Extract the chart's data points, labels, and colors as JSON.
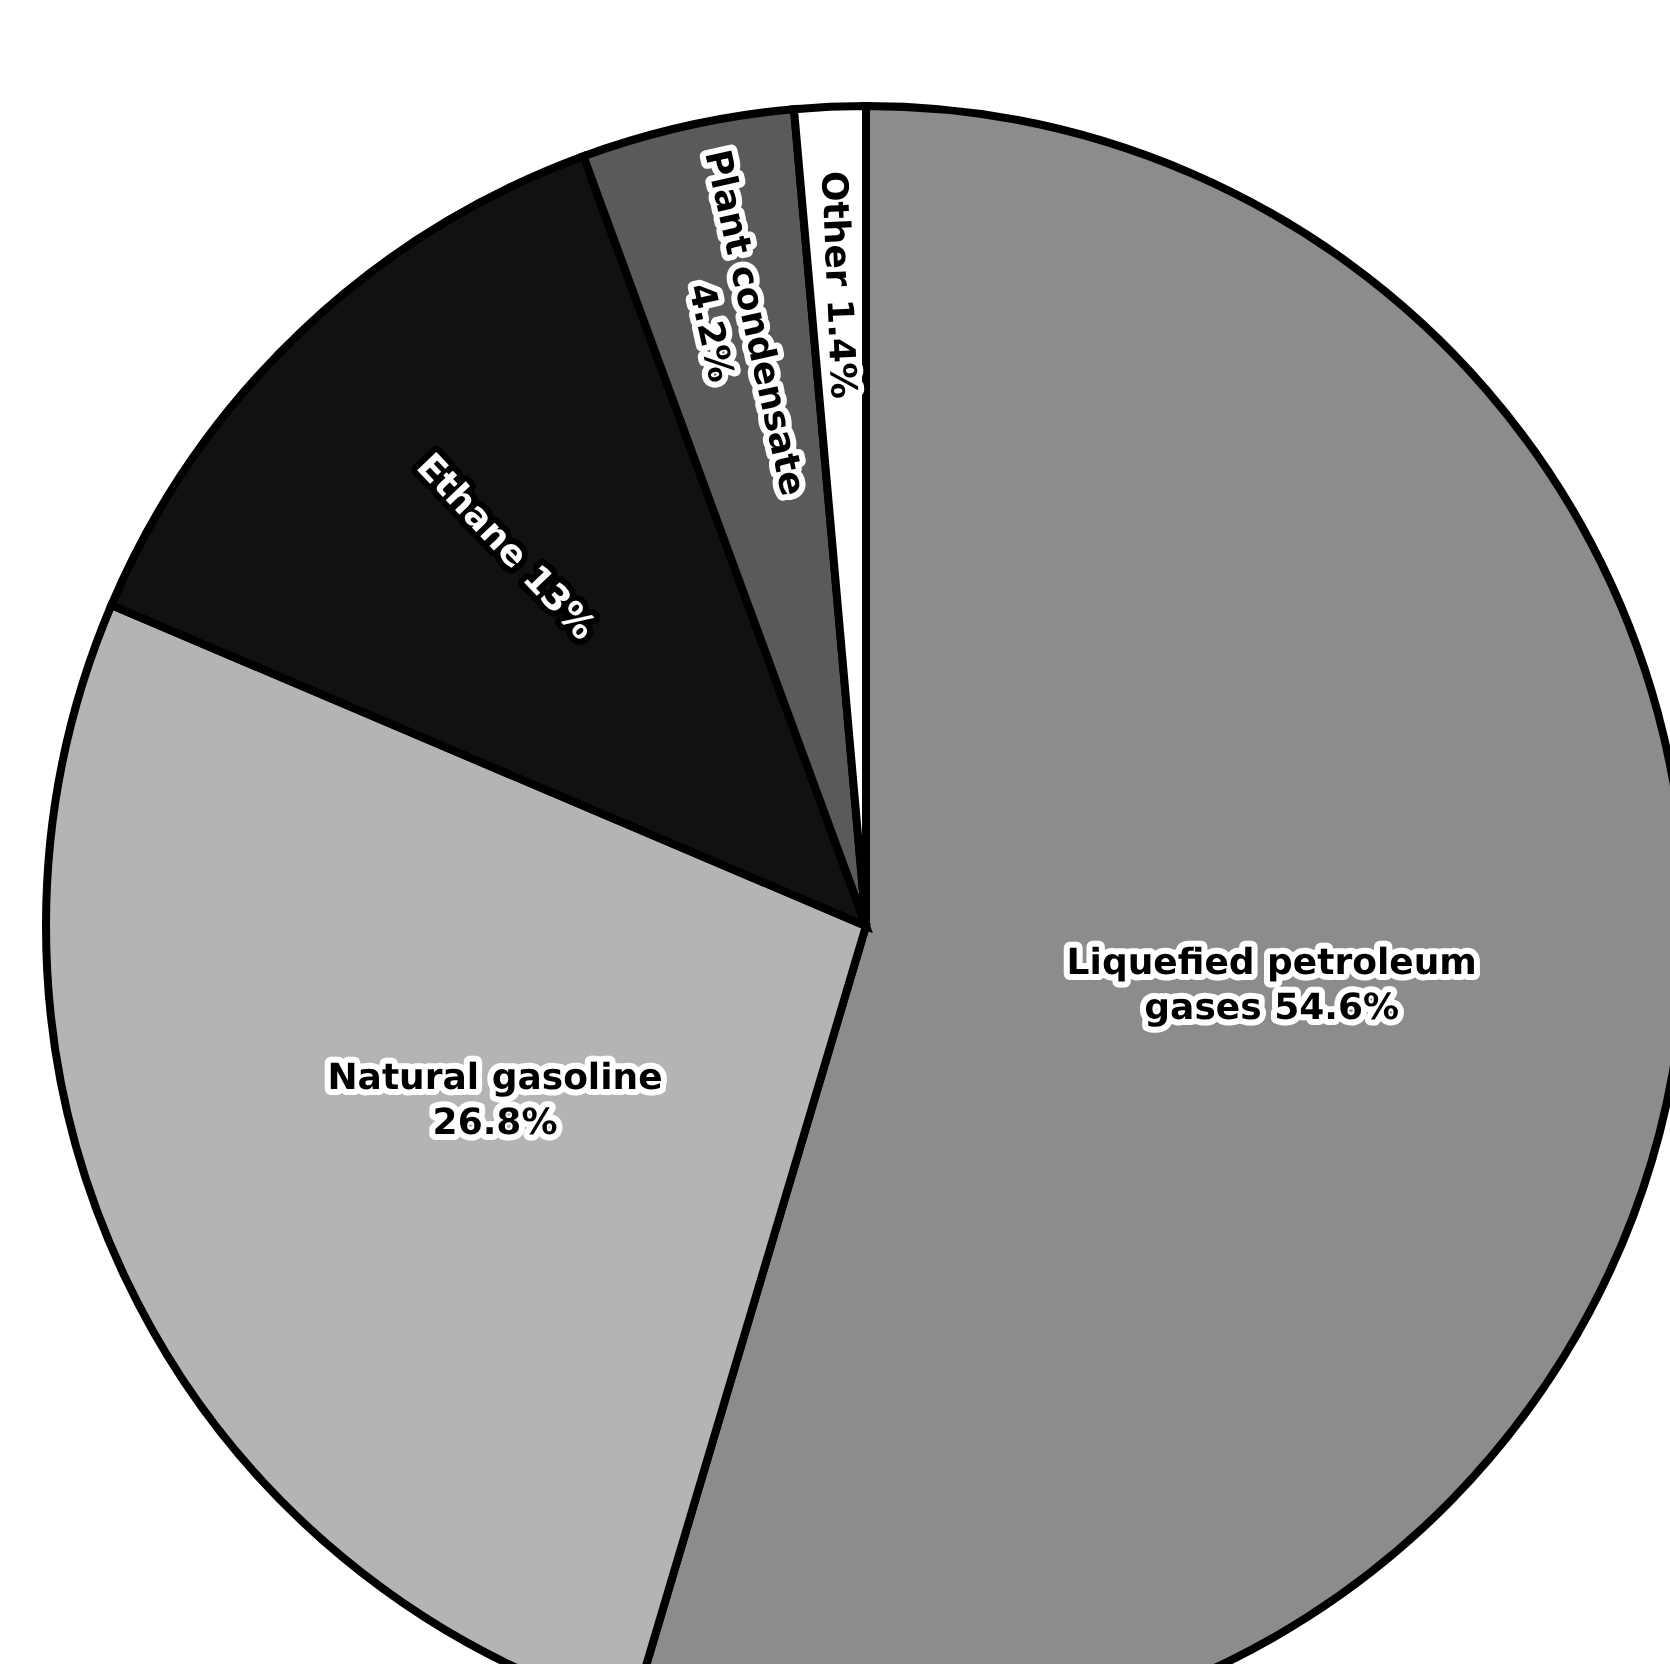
{
  "chart_data": {
    "type": "pie",
    "categories": [
      "Liquefied petroleum gases",
      "Natural gasoline",
      "Ethane",
      "Plant condensate",
      "Other"
    ],
    "values": [
      54.6,
      26.8,
      13,
      4.2,
      1.4
    ],
    "value_labels": [
      "54.6%",
      "26.8%",
      "13%",
      "4.2%",
      "1.4%"
    ],
    "colors": [
      "#8c8c8c",
      "#b4b4b4",
      "#111111",
      "#5a5a5a",
      "#ffffff"
    ],
    "data_labels": true
  }
}
